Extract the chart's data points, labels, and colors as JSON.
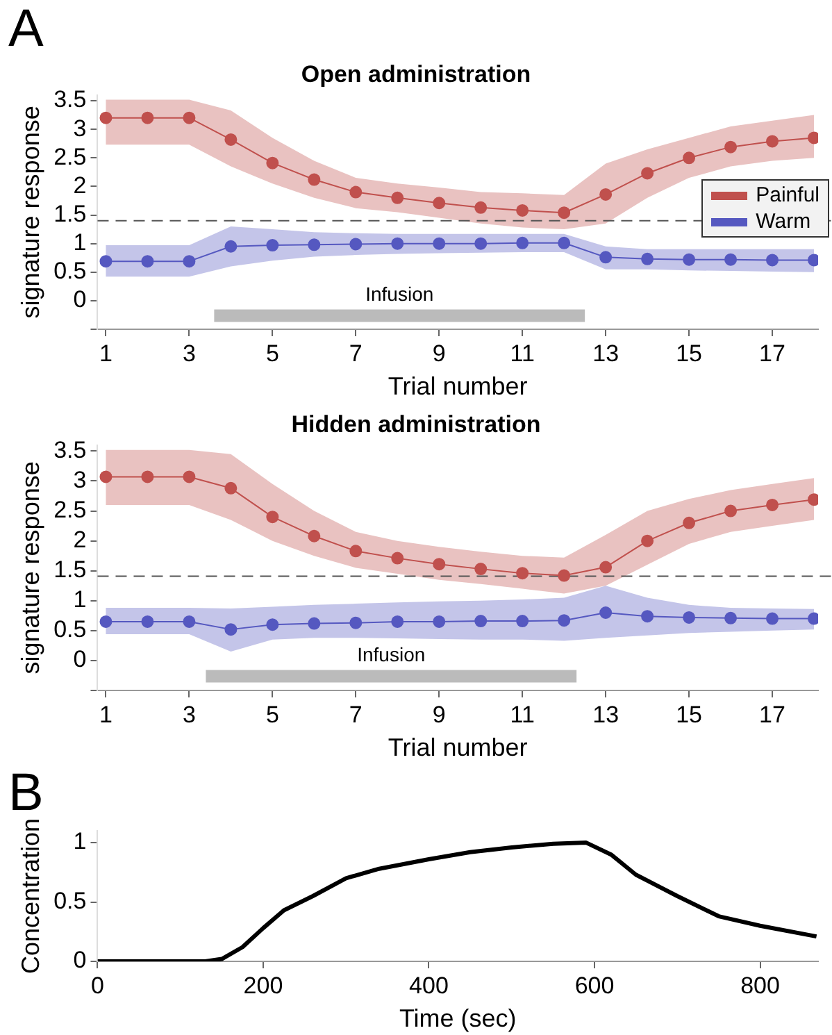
{
  "chart_data": [
    {
      "type": "line",
      "title": "Open administration",
      "xlabel": "Trial number",
      "ylabel": "signature response",
      "annotations": [
        "A"
      ],
      "x": [
        1,
        2,
        3,
        4,
        5,
        6,
        7,
        8,
        9,
        10,
        11,
        12,
        13,
        14,
        15,
        16,
        17,
        18
      ],
      "xlim": [
        0.8,
        18.1
      ],
      "xticks": [
        1,
        3,
        5,
        7,
        9,
        11,
        13,
        15,
        17
      ],
      "ylim": [
        -0.5,
        3.6
      ],
      "yticks": [
        {
          "value": -0.5,
          "label": null
        },
        0,
        0.5,
        1,
        1.5,
        2,
        2.5,
        3,
        3.5
      ],
      "marker": "circle",
      "legend": "right",
      "grid": false,
      "ref_lines": [
        {
          "axis": "y",
          "value": 1.4,
          "color": "#555555",
          "line_style": "dashed"
        }
      ],
      "bands": [
        {
          "axis": "x",
          "from": 3.6,
          "to": 12.5,
          "label": "Infusion",
          "color": "#bbbbbb"
        }
      ],
      "series": [
        {
          "name": "Painful",
          "color": "#c0504d",
          "values": [
            3.2,
            3.2,
            3.2,
            2.82,
            2.41,
            2.12,
            1.9,
            1.8,
            1.71,
            1.63,
            1.58,
            1.54,
            1.86,
            2.23,
            2.5,
            2.69,
            2.79,
            2.85
          ],
          "upper": [
            3.52,
            3.52,
            3.52,
            3.33,
            2.85,
            2.45,
            2.15,
            2.05,
            1.98,
            1.9,
            1.88,
            1.85,
            2.4,
            2.65,
            2.85,
            3.05,
            3.15,
            3.25
          ],
          "lower": [
            2.73,
            2.73,
            2.73,
            2.35,
            2.05,
            1.8,
            1.62,
            1.55,
            1.45,
            1.35,
            1.28,
            1.25,
            1.35,
            1.8,
            2.15,
            2.35,
            2.45,
            2.5
          ]
        },
        {
          "name": "Warm",
          "color": "#5558c0",
          "values": [
            0.69,
            0.69,
            0.69,
            0.95,
            0.97,
            0.98,
            0.99,
            1.0,
            1.0,
            1.0,
            1.01,
            1.01,
            0.76,
            0.73,
            0.72,
            0.72,
            0.71,
            0.71
          ],
          "upper": [
            0.97,
            0.97,
            0.97,
            1.3,
            1.25,
            1.2,
            1.18,
            1.17,
            1.17,
            1.17,
            1.17,
            1.17,
            0.95,
            0.9,
            0.9,
            0.9,
            0.9,
            0.9
          ],
          "lower": [
            0.42,
            0.42,
            0.42,
            0.6,
            0.7,
            0.77,
            0.8,
            0.82,
            0.83,
            0.84,
            0.85,
            0.85,
            0.55,
            0.55,
            0.53,
            0.52,
            0.51,
            0.5
          ]
        }
      ]
    },
    {
      "type": "line",
      "title": "Hidden administration",
      "xlabel": "Trial number",
      "ylabel": "signature response",
      "x": [
        1,
        2,
        3,
        4,
        5,
        6,
        7,
        8,
        9,
        10,
        11,
        12,
        13,
        14,
        15,
        16,
        17,
        18
      ],
      "xlim": [
        0.8,
        18.1
      ],
      "xticks": [
        1,
        3,
        5,
        7,
        9,
        11,
        13,
        15,
        17
      ],
      "ylim": [
        -0.5,
        3.6
      ],
      "yticks": [
        {
          "value": -0.5,
          "label": null
        },
        0,
        0.5,
        1,
        1.5,
        2,
        2.5,
        3,
        3.5
      ],
      "marker": "circle",
      "grid": false,
      "ref_lines": [
        {
          "axis": "y",
          "value": 1.41,
          "color": "#555555",
          "line_style": "dashed"
        }
      ],
      "bands": [
        {
          "axis": "x",
          "from": 3.4,
          "to": 12.3,
          "label": "Infusion",
          "color": "#bbbbbb"
        }
      ],
      "series": [
        {
          "color": "#c0504d",
          "values": [
            3.07,
            3.07,
            3.07,
            2.88,
            2.4,
            2.08,
            1.83,
            1.71,
            1.61,
            1.53,
            1.46,
            1.42,
            1.56,
            2.0,
            2.3,
            2.5,
            2.6,
            2.69
          ],
          "upper": [
            3.52,
            3.52,
            3.52,
            3.45,
            2.95,
            2.5,
            2.15,
            2.0,
            1.9,
            1.82,
            1.75,
            1.72,
            2.1,
            2.5,
            2.7,
            2.85,
            2.95,
            3.05
          ],
          "lower": [
            2.6,
            2.6,
            2.6,
            2.35,
            2.0,
            1.75,
            1.55,
            1.45,
            1.35,
            1.28,
            1.2,
            1.12,
            1.25,
            1.6,
            1.95,
            2.15,
            2.25,
            2.35
          ]
        },
        {
          "color": "#5558c0",
          "values": [
            0.65,
            0.65,
            0.65,
            0.52,
            0.6,
            0.62,
            0.63,
            0.65,
            0.65,
            0.66,
            0.66,
            0.67,
            0.8,
            0.74,
            0.72,
            0.71,
            0.7,
            0.7
          ],
          "upper": [
            0.88,
            0.88,
            0.88,
            0.87,
            0.9,
            0.93,
            0.95,
            0.97,
            0.99,
            1.0,
            1.02,
            1.05,
            1.25,
            1.05,
            0.93,
            0.88,
            0.87,
            0.86
          ],
          "lower": [
            0.44,
            0.44,
            0.44,
            0.15,
            0.35,
            0.38,
            0.38,
            0.37,
            0.36,
            0.35,
            0.35,
            0.33,
            0.38,
            0.42,
            0.46,
            0.48,
            0.5,
            0.52
          ]
        }
      ]
    },
    {
      "type": "line",
      "xlabel": "Time (sec)",
      "ylabel": "Concentration",
      "annotations": [
        "B"
      ],
      "xlim": [
        0,
        870
      ],
      "xticks": [
        0,
        200,
        400,
        600,
        800
      ],
      "ylim": [
        0,
        1.1
      ],
      "yticks": [
        0,
        0.5,
        1
      ],
      "grid": false,
      "marker": "none",
      "series": [
        {
          "color": "#000000",
          "x": [
            0,
            130,
            150,
            175,
            200,
            225,
            260,
            300,
            340,
            400,
            450,
            500,
            550,
            590,
            620,
            650,
            700,
            750,
            800,
            868
          ],
          "values": [
            0,
            0,
            0.02,
            0.12,
            0.28,
            0.43,
            0.55,
            0.7,
            0.78,
            0.86,
            0.92,
            0.96,
            0.99,
            1.0,
            0.9,
            0.73,
            0.55,
            0.38,
            0.3,
            0.21
          ]
        }
      ]
    }
  ]
}
